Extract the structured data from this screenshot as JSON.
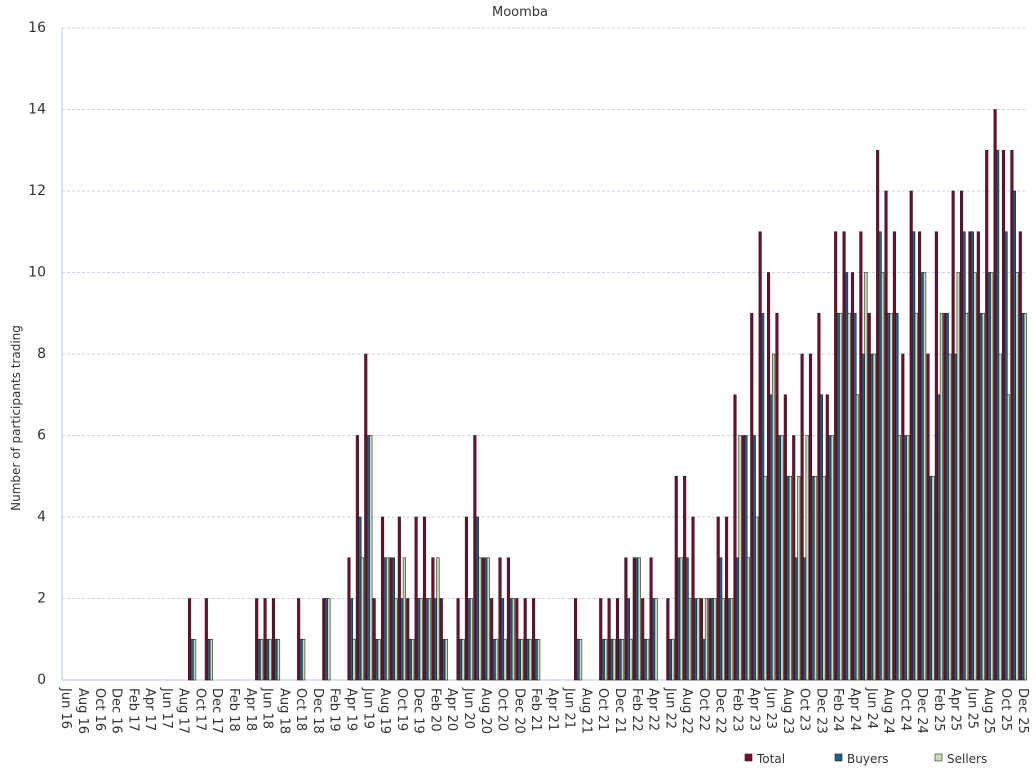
{
  "chart_data": {
    "type": "bar",
    "title": "Moomba",
    "y_label": "Number of participants trading",
    "categories": [
      "Jun 16",
      null,
      "Aug 16",
      null,
      "Oct 16",
      null,
      "Dec 16",
      null,
      "Feb 17",
      null,
      "Apr 17",
      null,
      "Jun 17",
      null,
      "Aug 17",
      null,
      "Oct 17",
      null,
      "Dec 17",
      null,
      "Feb 18",
      null,
      "Apr 18",
      null,
      "Jun 18",
      null,
      "Aug 18",
      null,
      "Oct 18",
      null,
      "Dec 18",
      null,
      "Feb 19",
      null,
      "Apr 19",
      null,
      "Jun 19",
      null,
      "Aug 19",
      null,
      "Oct 19",
      null,
      "Dec 19",
      null,
      "Feb 20",
      null,
      "Apr 20",
      null,
      "Jun 20",
      null,
      "Aug 20",
      null,
      "Oct 20",
      null,
      "Dec 20",
      null,
      "Feb 21",
      null,
      "Apr 21",
      null,
      "Jun 21",
      null,
      "Aug 21",
      null,
      "Oct 21",
      null,
      "Dec 21",
      null,
      "Feb 22",
      null,
      "Apr 22",
      null,
      "Jun 22",
      null,
      "Aug 22",
      null,
      "Oct 22",
      null,
      "Dec 22",
      null,
      "Feb 23",
      null,
      "Apr 23",
      null,
      "Jun 23",
      null,
      "Aug 23",
      null,
      "Oct 23",
      null,
      "Dec 23",
      null,
      "Feb 24",
      null,
      "Apr 24",
      null,
      "Jun 24",
      null,
      "Aug 24",
      null,
      "Oct 24",
      null,
      "Dec 24",
      null,
      "Feb 25",
      null,
      "Apr 25",
      null,
      "Jun 25",
      null,
      "Aug 25",
      null,
      "Oct 25",
      null,
      "Dec 25"
    ],
    "series": [
      {
        "name": "Total",
        "color": "#7b0a2a",
        "values": [
          0,
          0,
          0,
          0,
          0,
          0,
          0,
          0,
          0,
          0,
          0,
          0,
          0,
          0,
          0,
          2,
          0,
          2,
          0,
          0,
          0,
          0,
          0,
          2,
          2,
          2,
          0,
          0,
          2,
          0,
          0,
          2,
          0,
          0,
          3,
          6,
          8,
          2,
          4,
          3,
          4,
          2,
          4,
          4,
          3,
          2,
          0,
          2,
          4,
          6,
          3,
          2,
          3,
          3,
          2,
          2,
          2,
          0,
          0,
          0,
          0,
          2,
          0,
          0,
          2,
          2,
          2,
          3,
          3,
          2,
          3,
          0,
          2,
          5,
          5,
          4,
          2,
          2,
          4,
          4,
          7,
          6,
          9,
          11,
          10,
          9,
          7,
          6,
          8,
          8,
          9,
          7,
          11,
          11,
          10,
          11,
          9,
          13,
          12,
          11,
          8,
          12,
          11,
          8,
          11,
          9,
          12,
          12,
          11,
          11,
          13,
          14,
          13,
          13,
          11
        ]
      },
      {
        "name": "Buyers",
        "color": "#1f5f8b",
        "values": [
          0,
          0,
          0,
          0,
          0,
          0,
          0,
          0,
          0,
          0,
          0,
          0,
          0,
          0,
          0,
          1,
          0,
          1,
          0,
          0,
          0,
          0,
          0,
          1,
          1,
          1,
          0,
          0,
          1,
          0,
          0,
          2,
          0,
          0,
          2,
          4,
          6,
          1,
          3,
          3,
          2,
          1,
          2,
          2,
          2,
          1,
          0,
          1,
          2,
          4,
          3,
          1,
          2,
          2,
          1,
          1,
          1,
          0,
          0,
          0,
          0,
          1,
          0,
          0,
          1,
          1,
          1,
          2,
          3,
          1,
          2,
          0,
          1,
          3,
          3,
          2,
          1,
          2,
          3,
          2,
          3,
          6,
          6,
          9,
          7,
          6,
          5,
          3,
          3,
          5,
          7,
          6,
          9,
          10,
          9,
          8,
          8,
          11,
          9,
          9,
          6,
          11,
          10,
          5,
          7,
          9,
          8,
          11,
          11,
          9,
          10,
          13,
          11,
          12,
          9
        ]
      },
      {
        "name": "Sellers",
        "color": "#c5e0b4",
        "values": [
          0,
          0,
          0,
          0,
          0,
          0,
          0,
          0,
          0,
          0,
          0,
          0,
          0,
          0,
          0,
          1,
          0,
          1,
          0,
          0,
          0,
          0,
          0,
          1,
          1,
          1,
          0,
          0,
          1,
          0,
          0,
          2,
          0,
          0,
          1,
          3,
          6,
          1,
          3,
          2,
          3,
          1,
          2,
          2,
          3,
          1,
          0,
          1,
          2,
          3,
          3,
          1,
          1,
          2,
          1,
          1,
          1,
          0,
          0,
          0,
          0,
          1,
          0,
          0,
          1,
          1,
          1,
          1,
          3,
          1,
          2,
          0,
          1,
          3,
          2,
          2,
          2,
          2,
          2,
          2,
          6,
          3,
          4,
          5,
          8,
          6,
          5,
          5,
          6,
          5,
          5,
          6,
          9,
          9,
          7,
          10,
          8,
          10,
          9,
          6,
          6,
          9,
          10,
          5,
          9,
          8,
          10,
          9,
          10,
          9,
          10,
          8,
          7,
          10,
          9
        ]
      }
    ],
    "ylim": [
      0,
      16
    ],
    "yticks": [
      0,
      2,
      4,
      6,
      8,
      10,
      12,
      14,
      16
    ],
    "grid": true,
    "legend": "bottom-right"
  }
}
